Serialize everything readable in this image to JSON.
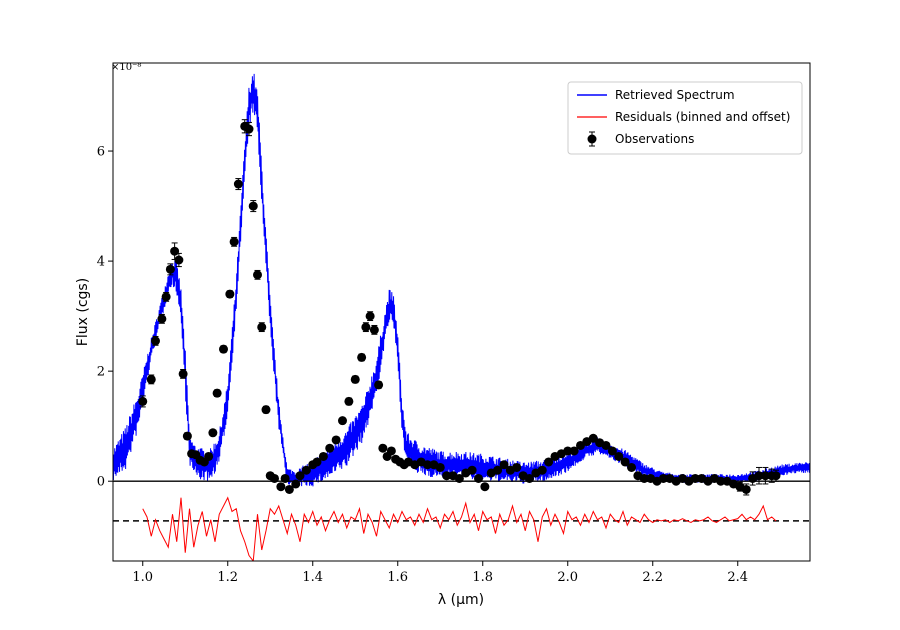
{
  "chart_data": {
    "type": "line",
    "xlabel": "λ (μm)",
    "ylabel": "Flux (cgs)",
    "y_multiplier_label": "×10⁻⁸",
    "xlim": [
      0.93,
      2.57
    ],
    "ylim": [
      -1.45,
      7.6
    ],
    "x_ticks": [
      1.0,
      1.2,
      1.4,
      1.6,
      1.8,
      2.0,
      2.2,
      2.4
    ],
    "x_tick_labels": [
      "1.0",
      "1.2",
      "1.4",
      "1.6",
      "1.8",
      "2.0",
      "2.2",
      "2.4"
    ],
    "y_ticks": [
      0,
      2,
      4,
      6
    ],
    "y_tick_labels": [
      "0",
      "2",
      "4",
      "6"
    ],
    "zero_line": 0,
    "residual_offset_line": -0.72,
    "legend": {
      "placement": "top-right",
      "entries": [
        {
          "label": "Retrieved Spectrum",
          "color": "#0000ff",
          "kind": "line"
        },
        {
          "label": "Residuals (binned and offset)",
          "color": "#ff0000",
          "kind": "line"
        },
        {
          "label": "Observations",
          "color": "#000000",
          "kind": "errorbar-marker"
        }
      ]
    },
    "series": [
      {
        "name": "Retrieved Spectrum",
        "color": "#0000ff",
        "envelope": {
          "x": [
            0.93,
            0.96,
            0.99,
            1.02,
            1.04,
            1.06,
            1.07,
            1.08,
            1.09,
            1.1,
            1.11,
            1.12,
            1.14,
            1.16,
            1.18,
            1.2,
            1.22,
            1.24,
            1.25,
            1.26,
            1.27,
            1.28,
            1.29,
            1.3,
            1.32,
            1.34,
            1.36,
            1.4,
            1.44,
            1.48,
            1.52,
            1.55,
            1.57,
            1.58,
            1.59,
            1.6,
            1.61,
            1.62,
            1.65,
            1.7,
            1.75,
            1.8,
            1.85,
            1.9,
            1.95,
            2.0,
            2.04,
            2.07,
            2.1,
            2.14,
            2.18,
            2.22,
            2.26,
            2.3,
            2.35,
            2.4,
            2.45,
            2.5,
            2.55,
            2.57
          ],
          "mean": [
            0.3,
            0.6,
            1.3,
            2.4,
            3.0,
            3.6,
            3.8,
            3.7,
            3.2,
            2.0,
            0.6,
            0.4,
            0.3,
            0.3,
            0.6,
            1.5,
            3.4,
            5.8,
            6.8,
            7.1,
            6.7,
            5.4,
            4.2,
            3.0,
            1.2,
            0.1,
            0.05,
            0.15,
            0.35,
            0.6,
            1.1,
            1.9,
            2.8,
            3.2,
            3.1,
            2.4,
            1.2,
            0.6,
            0.4,
            0.3,
            0.3,
            0.25,
            0.2,
            0.15,
            0.2,
            0.35,
            0.55,
            0.65,
            0.55,
            0.4,
            0.2,
            0.08,
            0.05,
            0.05,
            0.05,
            0.05,
            0.1,
            0.2,
            0.25,
            0.25
          ],
          "half_width": [
            0.3,
            0.4,
            0.35,
            0.2,
            0.2,
            0.2,
            0.25,
            0.3,
            0.3,
            0.4,
            0.3,
            0.3,
            0.3,
            0.3,
            0.3,
            0.3,
            0.3,
            0.35,
            0.4,
            0.4,
            0.4,
            0.4,
            0.35,
            0.3,
            0.25,
            0.15,
            0.15,
            0.25,
            0.3,
            0.35,
            0.35,
            0.35,
            0.3,
            0.3,
            0.3,
            0.3,
            0.3,
            0.3,
            0.3,
            0.25,
            0.25,
            0.25,
            0.22,
            0.2,
            0.2,
            0.18,
            0.15,
            0.15,
            0.15,
            0.15,
            0.12,
            0.1,
            0.08,
            0.08,
            0.08,
            0.08,
            0.1,
            0.1,
            0.1,
            0.1
          ]
        }
      },
      {
        "name": "Observations",
        "color": "#000000",
        "x": [
          1.0,
          1.02,
          1.03,
          1.045,
          1.055,
          1.065,
          1.075,
          1.085,
          1.095,
          1.105,
          1.115,
          1.125,
          1.135,
          1.145,
          1.155,
          1.165,
          1.175,
          1.19,
          1.205,
          1.215,
          1.225,
          1.24,
          1.25,
          1.26,
          1.27,
          1.28,
          1.29,
          1.3,
          1.31,
          1.325,
          1.335,
          1.345,
          1.36,
          1.37,
          1.385,
          1.4,
          1.41,
          1.425,
          1.44,
          1.455,
          1.47,
          1.485,
          1.5,
          1.515,
          1.525,
          1.535,
          1.545,
          1.555,
          1.565,
          1.575,
          1.585,
          1.595,
          1.605,
          1.615,
          1.625,
          1.64,
          1.655,
          1.67,
          1.685,
          1.7,
          1.715,
          1.73,
          1.745,
          1.76,
          1.775,
          1.79,
          1.805,
          1.82,
          1.835,
          1.85,
          1.865,
          1.88,
          1.895,
          1.91,
          1.925,
          1.94,
          1.955,
          1.97,
          1.985,
          2.0,
          2.015,
          2.03,
          2.045,
          2.06,
          2.075,
          2.09,
          2.105,
          2.12,
          2.135,
          2.15,
          2.165,
          2.18,
          2.195,
          2.21,
          2.225,
          2.24,
          2.255,
          2.27,
          2.285,
          2.3,
          2.315,
          2.33,
          2.345,
          2.36,
          2.375,
          2.39,
          2.405,
          2.42,
          2.435,
          2.45,
          2.465,
          2.48,
          2.49
        ],
        "y": [
          1.45,
          1.85,
          2.55,
          2.95,
          3.35,
          3.85,
          4.18,
          4.02,
          1.95,
          0.82,
          0.5,
          0.48,
          0.38,
          0.35,
          0.45,
          0.88,
          1.6,
          2.4,
          3.4,
          4.35,
          5.4,
          6.45,
          6.4,
          5.0,
          3.75,
          2.8,
          1.3,
          0.1,
          0.05,
          -0.1,
          0.05,
          -0.15,
          -0.05,
          0.1,
          0.2,
          0.3,
          0.35,
          0.45,
          0.6,
          0.75,
          1.1,
          1.45,
          1.85,
          2.25,
          2.8,
          3.0,
          2.75,
          1.75,
          0.6,
          0.45,
          0.55,
          0.4,
          0.35,
          0.3,
          0.35,
          0.3,
          0.35,
          0.3,
          0.3,
          0.25,
          0.1,
          0.1,
          0.05,
          0.15,
          0.2,
          0.05,
          -0.1,
          0.15,
          0.2,
          0.3,
          0.2,
          0.25,
          0.1,
          0.05,
          0.15,
          0.2,
          0.35,
          0.45,
          0.5,
          0.55,
          0.55,
          0.65,
          0.72,
          0.78,
          0.7,
          0.65,
          0.55,
          0.45,
          0.35,
          0.25,
          0.1,
          0.05,
          0.05,
          0.0,
          0.05,
          0.05,
          0.0,
          0.05,
          0.0,
          0.05,
          0.05,
          0.0,
          0.05,
          0.0,
          0.0,
          -0.05,
          -0.1,
          -0.15,
          0.05,
          0.1,
          0.1,
          0.1,
          0.1
        ],
        "yerr": [
          0.1,
          0.08,
          0.08,
          0.08,
          0.08,
          0.1,
          0.15,
          0.12,
          0.08,
          0.06,
          0.05,
          0.05,
          0.05,
          0.05,
          0.05,
          0.05,
          0.06,
          0.06,
          0.06,
          0.08,
          0.1,
          0.12,
          0.12,
          0.1,
          0.08,
          0.08,
          0.06,
          0.05,
          0.05,
          0.05,
          0.05,
          0.05,
          0.05,
          0.05,
          0.05,
          0.05,
          0.05,
          0.05,
          0.05,
          0.05,
          0.05,
          0.06,
          0.06,
          0.06,
          0.08,
          0.08,
          0.08,
          0.06,
          0.05,
          0.05,
          0.05,
          0.05,
          0.05,
          0.05,
          0.05,
          0.05,
          0.05,
          0.05,
          0.05,
          0.05,
          0.05,
          0.05,
          0.05,
          0.05,
          0.05,
          0.05,
          0.05,
          0.05,
          0.05,
          0.05,
          0.05,
          0.05,
          0.05,
          0.05,
          0.05,
          0.05,
          0.05,
          0.05,
          0.05,
          0.05,
          0.05,
          0.05,
          0.05,
          0.05,
          0.05,
          0.05,
          0.05,
          0.05,
          0.05,
          0.05,
          0.05,
          0.05,
          0.05,
          0.05,
          0.05,
          0.05,
          0.05,
          0.05,
          0.05,
          0.05,
          0.05,
          0.05,
          0.05,
          0.05,
          0.05,
          0.05,
          0.08,
          0.1,
          0.12,
          0.15,
          0.15,
          0.12,
          0.1
        ]
      },
      {
        "name": "Residuals (binned and offset)",
        "color": "#ff0000",
        "x": [
          1.0,
          1.01,
          1.02,
          1.03,
          1.04,
          1.05,
          1.06,
          1.07,
          1.08,
          1.09,
          1.1,
          1.11,
          1.12,
          1.13,
          1.14,
          1.15,
          1.16,
          1.17,
          1.18,
          1.19,
          1.2,
          1.21,
          1.22,
          1.23,
          1.24,
          1.25,
          1.26,
          1.27,
          1.28,
          1.29,
          1.3,
          1.31,
          1.32,
          1.33,
          1.34,
          1.35,
          1.36,
          1.37,
          1.38,
          1.39,
          1.4,
          1.41,
          1.42,
          1.43,
          1.44,
          1.45,
          1.46,
          1.47,
          1.48,
          1.49,
          1.5,
          1.51,
          1.52,
          1.53,
          1.54,
          1.55,
          1.56,
          1.57,
          1.58,
          1.59,
          1.6,
          1.61,
          1.62,
          1.63,
          1.64,
          1.65,
          1.66,
          1.67,
          1.68,
          1.69,
          1.7,
          1.71,
          1.72,
          1.73,
          1.74,
          1.75,
          1.76,
          1.77,
          1.78,
          1.79,
          1.8,
          1.81,
          1.82,
          1.83,
          1.84,
          1.85,
          1.86,
          1.87,
          1.88,
          1.89,
          1.9,
          1.91,
          1.92,
          1.93,
          1.94,
          1.95,
          1.96,
          1.97,
          1.98,
          1.99,
          2.0,
          2.01,
          2.02,
          2.03,
          2.04,
          2.05,
          2.06,
          2.07,
          2.08,
          2.09,
          2.1,
          2.11,
          2.12,
          2.13,
          2.14,
          2.15,
          2.16,
          2.17,
          2.18,
          2.19,
          2.2,
          2.21,
          2.22,
          2.23,
          2.24,
          2.25,
          2.26,
          2.27,
          2.28,
          2.29,
          2.3,
          2.31,
          2.32,
          2.33,
          2.34,
          2.35,
          2.36,
          2.37,
          2.38,
          2.39,
          2.4,
          2.41,
          2.42,
          2.43,
          2.44,
          2.45,
          2.46,
          2.47,
          2.48,
          2.49
        ],
        "y": [
          -0.5,
          -0.65,
          -1.0,
          -0.7,
          -0.9,
          -1.05,
          -1.2,
          -0.6,
          -1.1,
          -0.3,
          -1.3,
          -0.5,
          -1.2,
          -0.8,
          -0.55,
          -1.0,
          -0.7,
          -1.1,
          -0.6,
          -0.45,
          -0.3,
          -0.55,
          -0.5,
          -0.9,
          -1.1,
          -1.35,
          -1.45,
          -0.6,
          -1.25,
          -0.9,
          -0.5,
          -0.6,
          -0.45,
          -0.7,
          -0.95,
          -0.6,
          -0.8,
          -1.1,
          -0.6,
          -0.75,
          -0.55,
          -0.8,
          -0.65,
          -0.9,
          -0.7,
          -0.55,
          -0.75,
          -0.6,
          -0.85,
          -0.65,
          -0.7,
          -0.5,
          -0.95,
          -0.6,
          -0.75,
          -1.0,
          -0.55,
          -0.7,
          -0.85,
          -0.6,
          -0.75,
          -0.55,
          -0.7,
          -0.65,
          -0.8,
          -0.6,
          -0.75,
          -0.5,
          -0.7,
          -0.65,
          -0.85,
          -0.6,
          -0.7,
          -0.55,
          -0.8,
          -0.65,
          -0.4,
          -0.75,
          -0.6,
          -0.9,
          -0.55,
          -0.7,
          -0.65,
          -0.95,
          -0.6,
          -0.8,
          -0.7,
          -0.45,
          -0.75,
          -0.6,
          -0.9,
          -0.55,
          -0.7,
          -1.1,
          -0.65,
          -0.5,
          -0.8,
          -0.6,
          -0.75,
          -0.95,
          -0.55,
          -0.7,
          -0.65,
          -0.8,
          -0.6,
          -0.75,
          -0.55,
          -0.7,
          -0.65,
          -0.85,
          -0.6,
          -0.7,
          -0.75,
          -0.55,
          -0.8,
          -0.65,
          -0.7,
          -0.75,
          -0.6,
          -0.7,
          -0.75,
          -0.7,
          -0.72,
          -0.7,
          -0.75,
          -0.7,
          -0.72,
          -0.68,
          -0.72,
          -0.75,
          -0.7,
          -0.72,
          -0.7,
          -0.65,
          -0.72,
          -0.75,
          -0.7,
          -0.65,
          -0.72,
          -0.7,
          -0.68,
          -0.6,
          -0.7,
          -0.65,
          -0.7,
          -0.6,
          -0.45,
          -0.7,
          -0.65,
          -0.72
        ]
      }
    ]
  }
}
